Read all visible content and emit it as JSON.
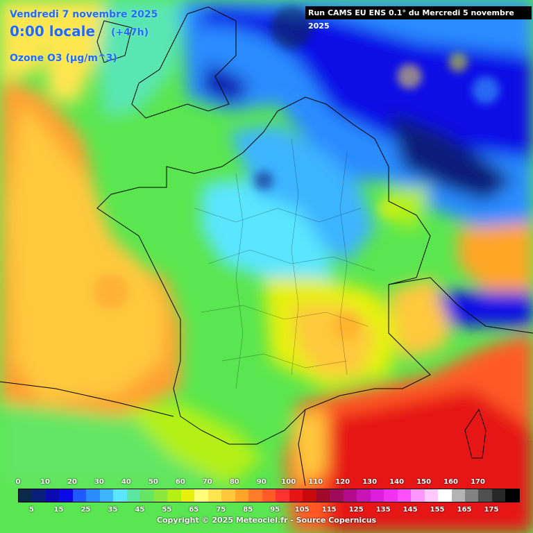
{
  "header": {
    "date": "Vendredi 7 novembre 2025",
    "time": "0:00 locale",
    "lead": "(+47h)",
    "parameter": "Ozone O3 (µg/m^3)"
  },
  "run_info": "Run CAMS EU ENS 0.1° du Mercredi 5 novembre 2025",
  "legend": {
    "top_labels": [
      "0",
      "10",
      "20",
      "30",
      "40",
      "50",
      "60",
      "70",
      "80",
      "90",
      "100",
      "110",
      "120",
      "130",
      "140",
      "150",
      "160",
      "170"
    ],
    "bottom_labels": [
      "5",
      "15",
      "25",
      "35",
      "45",
      "55",
      "65",
      "75",
      "85",
      "95",
      "105",
      "115",
      "125",
      "135",
      "145",
      "155",
      "165",
      "175"
    ],
    "colors": [
      "#0b2a4a",
      "#0a1f7a",
      "#0a0ab0",
      "#0a0ae6",
      "#1e5aff",
      "#2a8cff",
      "#3cb4ff",
      "#5ae6ff",
      "#5ae6a0",
      "#64e664",
      "#8ce63c",
      "#b4f014",
      "#e6f00a",
      "#ffff7a",
      "#ffe650",
      "#ffc83c",
      "#ffa528",
      "#ff7d28",
      "#ff5a28",
      "#ff3232",
      "#e61414",
      "#c80a0a",
      "#a00a28",
      "#a00a5a",
      "#b40a8c",
      "#c814b4",
      "#dc1edc",
      "#f032f0",
      "#ff50ff",
      "#ff96ff",
      "#ffc8ff",
      "#ffffff",
      "#b4b4b4",
      "#828282",
      "#505050",
      "#282828",
      "#000000"
    ]
  },
  "copyright": "Copyright © 2025 Meteociel.fr - Source Copernicus"
}
